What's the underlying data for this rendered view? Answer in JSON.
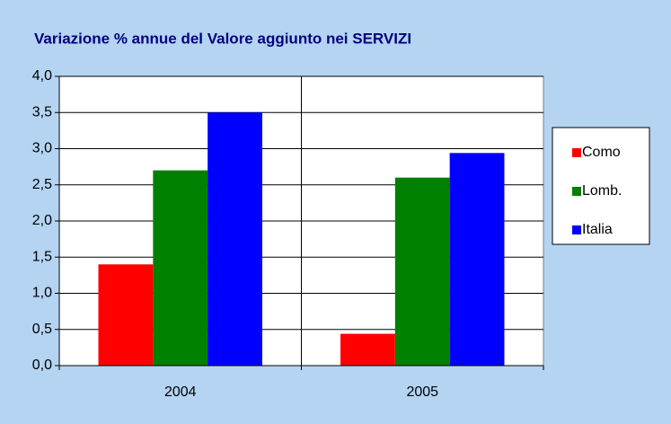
{
  "chart_data": {
    "type": "bar",
    "title": "Variazione % annue del Valore aggiunto nei SERVIZI",
    "categories": [
      "2004",
      "2005"
    ],
    "series": [
      {
        "name": "Como",
        "color": "#ff0000",
        "values": [
          1.4,
          0.44
        ]
      },
      {
        "name": "Lomb.",
        "color": "#008000",
        "values": [
          2.7,
          2.6
        ]
      },
      {
        "name": "Italia",
        "color": "#0000ff",
        "values": [
          3.5,
          2.94
        ]
      }
    ],
    "ylim": [
      0,
      4
    ],
    "yticks": [
      {
        "value": 0,
        "label": "0,0"
      },
      {
        "value": 0.5,
        "label": "0,5"
      },
      {
        "value": 1,
        "label": "1,0"
      },
      {
        "value": 1.5,
        "label": "1,5"
      },
      {
        "value": 2,
        "label": "2,0"
      },
      {
        "value": 2.5,
        "label": "2,5"
      },
      {
        "value": 3,
        "label": "3,0"
      },
      {
        "value": 3.5,
        "label": "3,5"
      },
      {
        "value": 4,
        "label": "4,0"
      }
    ],
    "grid": true,
    "legend": "right"
  }
}
